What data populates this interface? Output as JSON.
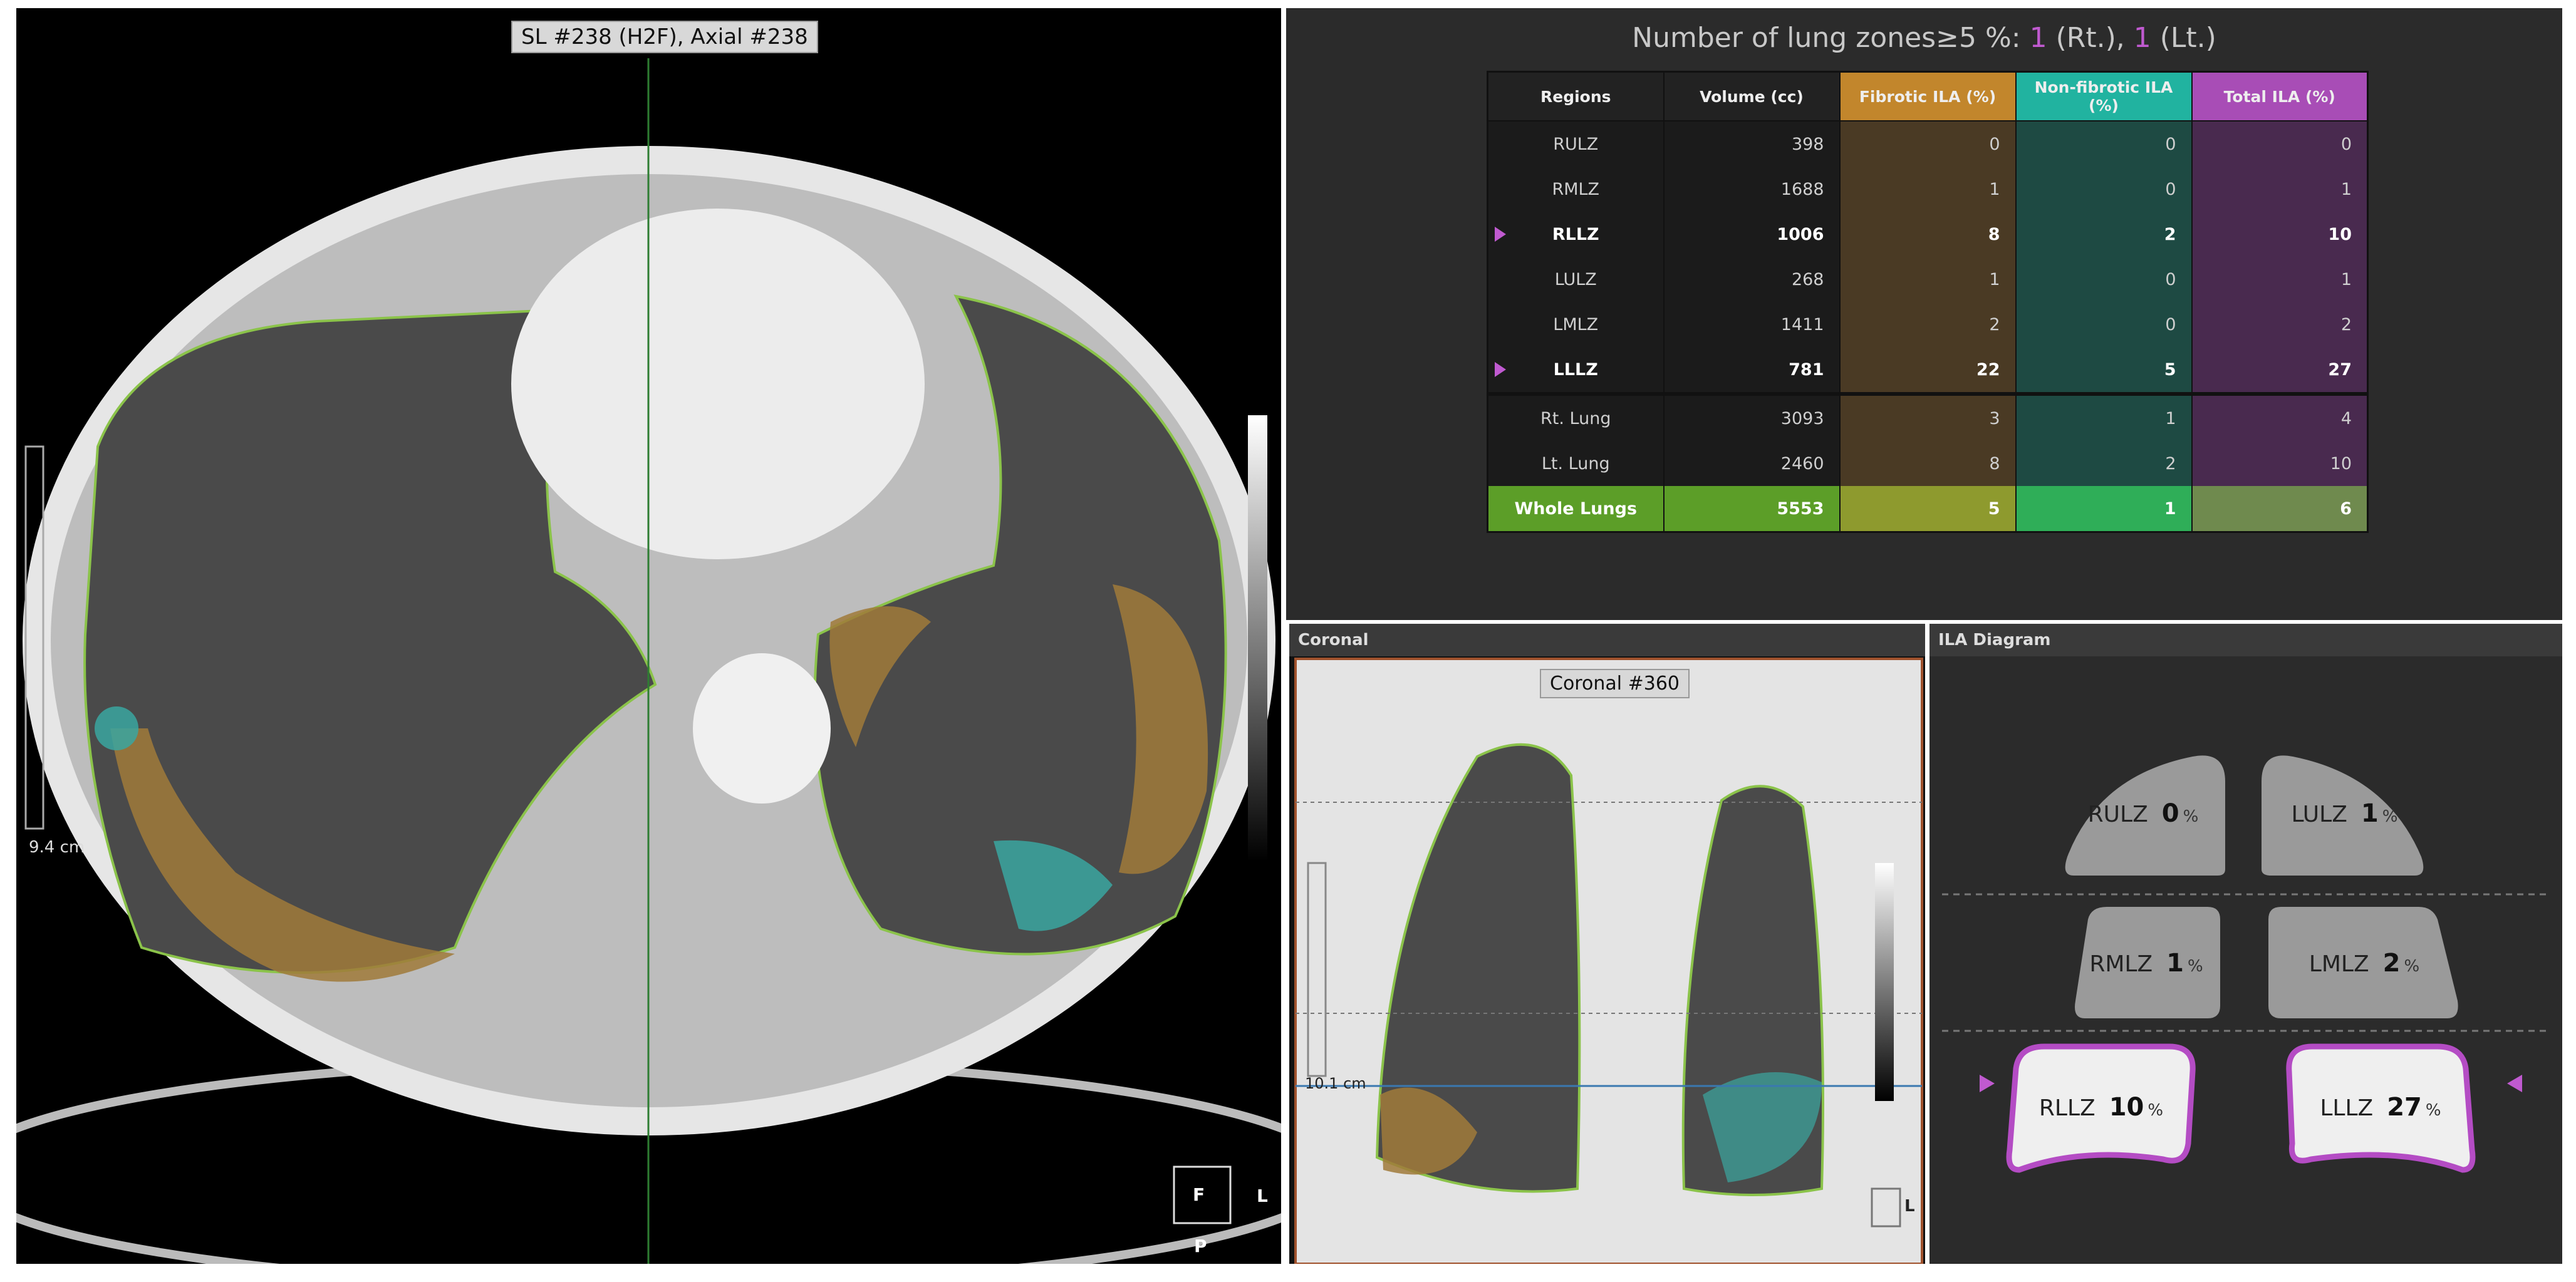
{
  "axial": {
    "label": "SL #238 (H2F), Axial #238",
    "scale": "9.4 cm",
    "marker": "F",
    "side": "L",
    "posterior": "P"
  },
  "summary": {
    "label": "Number of lung zones≥5 %:",
    "rt_count": 1,
    "rt_side": "(Rt.),",
    "lt_count": 1,
    "lt_side": "(Lt.)"
  },
  "table": {
    "headers": [
      "Regions",
      "Volume (cc)",
      "Fibrotic ILA (%)",
      "Non-fibrotic ILA (%)",
      "Total ILA (%)"
    ],
    "rows": [
      {
        "cells": [
          "RULZ",
          398,
          0,
          0,
          0
        ]
      },
      {
        "cells": [
          "RMLZ",
          1688,
          1,
          0,
          1
        ]
      },
      {
        "cells": [
          "RLLZ",
          1006,
          8,
          2,
          10
        ],
        "flag": true
      },
      {
        "cells": [
          "LULZ",
          268,
          1,
          0,
          1
        ]
      },
      {
        "cells": [
          "LMLZ",
          1411,
          2,
          0,
          2
        ]
      },
      {
        "cells": [
          "LLLZ",
          781,
          22,
          5,
          27
        ],
        "flag": true
      },
      {
        "cells": [
          "Rt. Lung",
          3093,
          3,
          1,
          4
        ]
      },
      {
        "cells": [
          "Lt. Lung",
          2460,
          8,
          2,
          10
        ]
      },
      {
        "cells": [
          "Whole Lungs",
          5553,
          5,
          1,
          6
        ]
      }
    ]
  },
  "coronal": {
    "title": "Coronal",
    "label": "Coronal #360",
    "scale": "10.1 cm",
    "side": "L"
  },
  "diagram": {
    "title": "ILA Diagram",
    "unit": "%",
    "zones": [
      {
        "name": "RULZ",
        "value": 0
      },
      {
        "name": "LULZ",
        "value": 1
      },
      {
        "name": "RMLZ",
        "value": 1
      },
      {
        "name": "LMLZ",
        "value": 2
      },
      {
        "name": "RLLZ",
        "value": 10
      },
      {
        "name": "LLLZ",
        "value": 27
      }
    ]
  }
}
